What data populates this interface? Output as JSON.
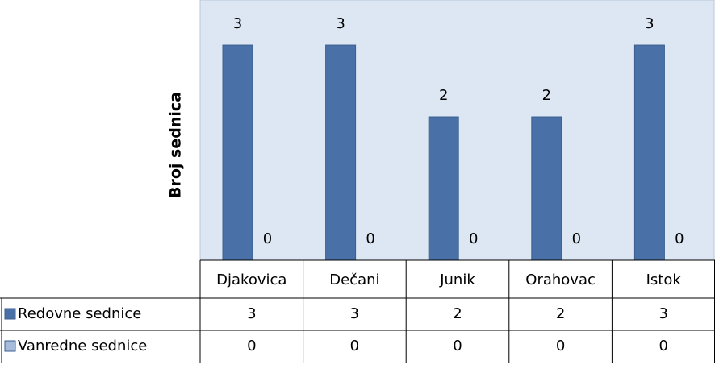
{
  "chart_data": {
    "type": "bar",
    "y_label": "Broj sednica",
    "categories": [
      "Djakovica",
      "Dečani",
      "Junik",
      "Orahovac",
      "Istok"
    ],
    "series": [
      {
        "name": "Redovne sednice",
        "color": "#4a70a8",
        "values": [
          3,
          3,
          2,
          2,
          3
        ]
      },
      {
        "name": "Vanredne sednice",
        "color": "#a7bcdb",
        "values": [
          0,
          0,
          0,
          0,
          0
        ]
      }
    ],
    "ylim": [
      0,
      3.63
    ],
    "grid": false,
    "data_table": true
  }
}
